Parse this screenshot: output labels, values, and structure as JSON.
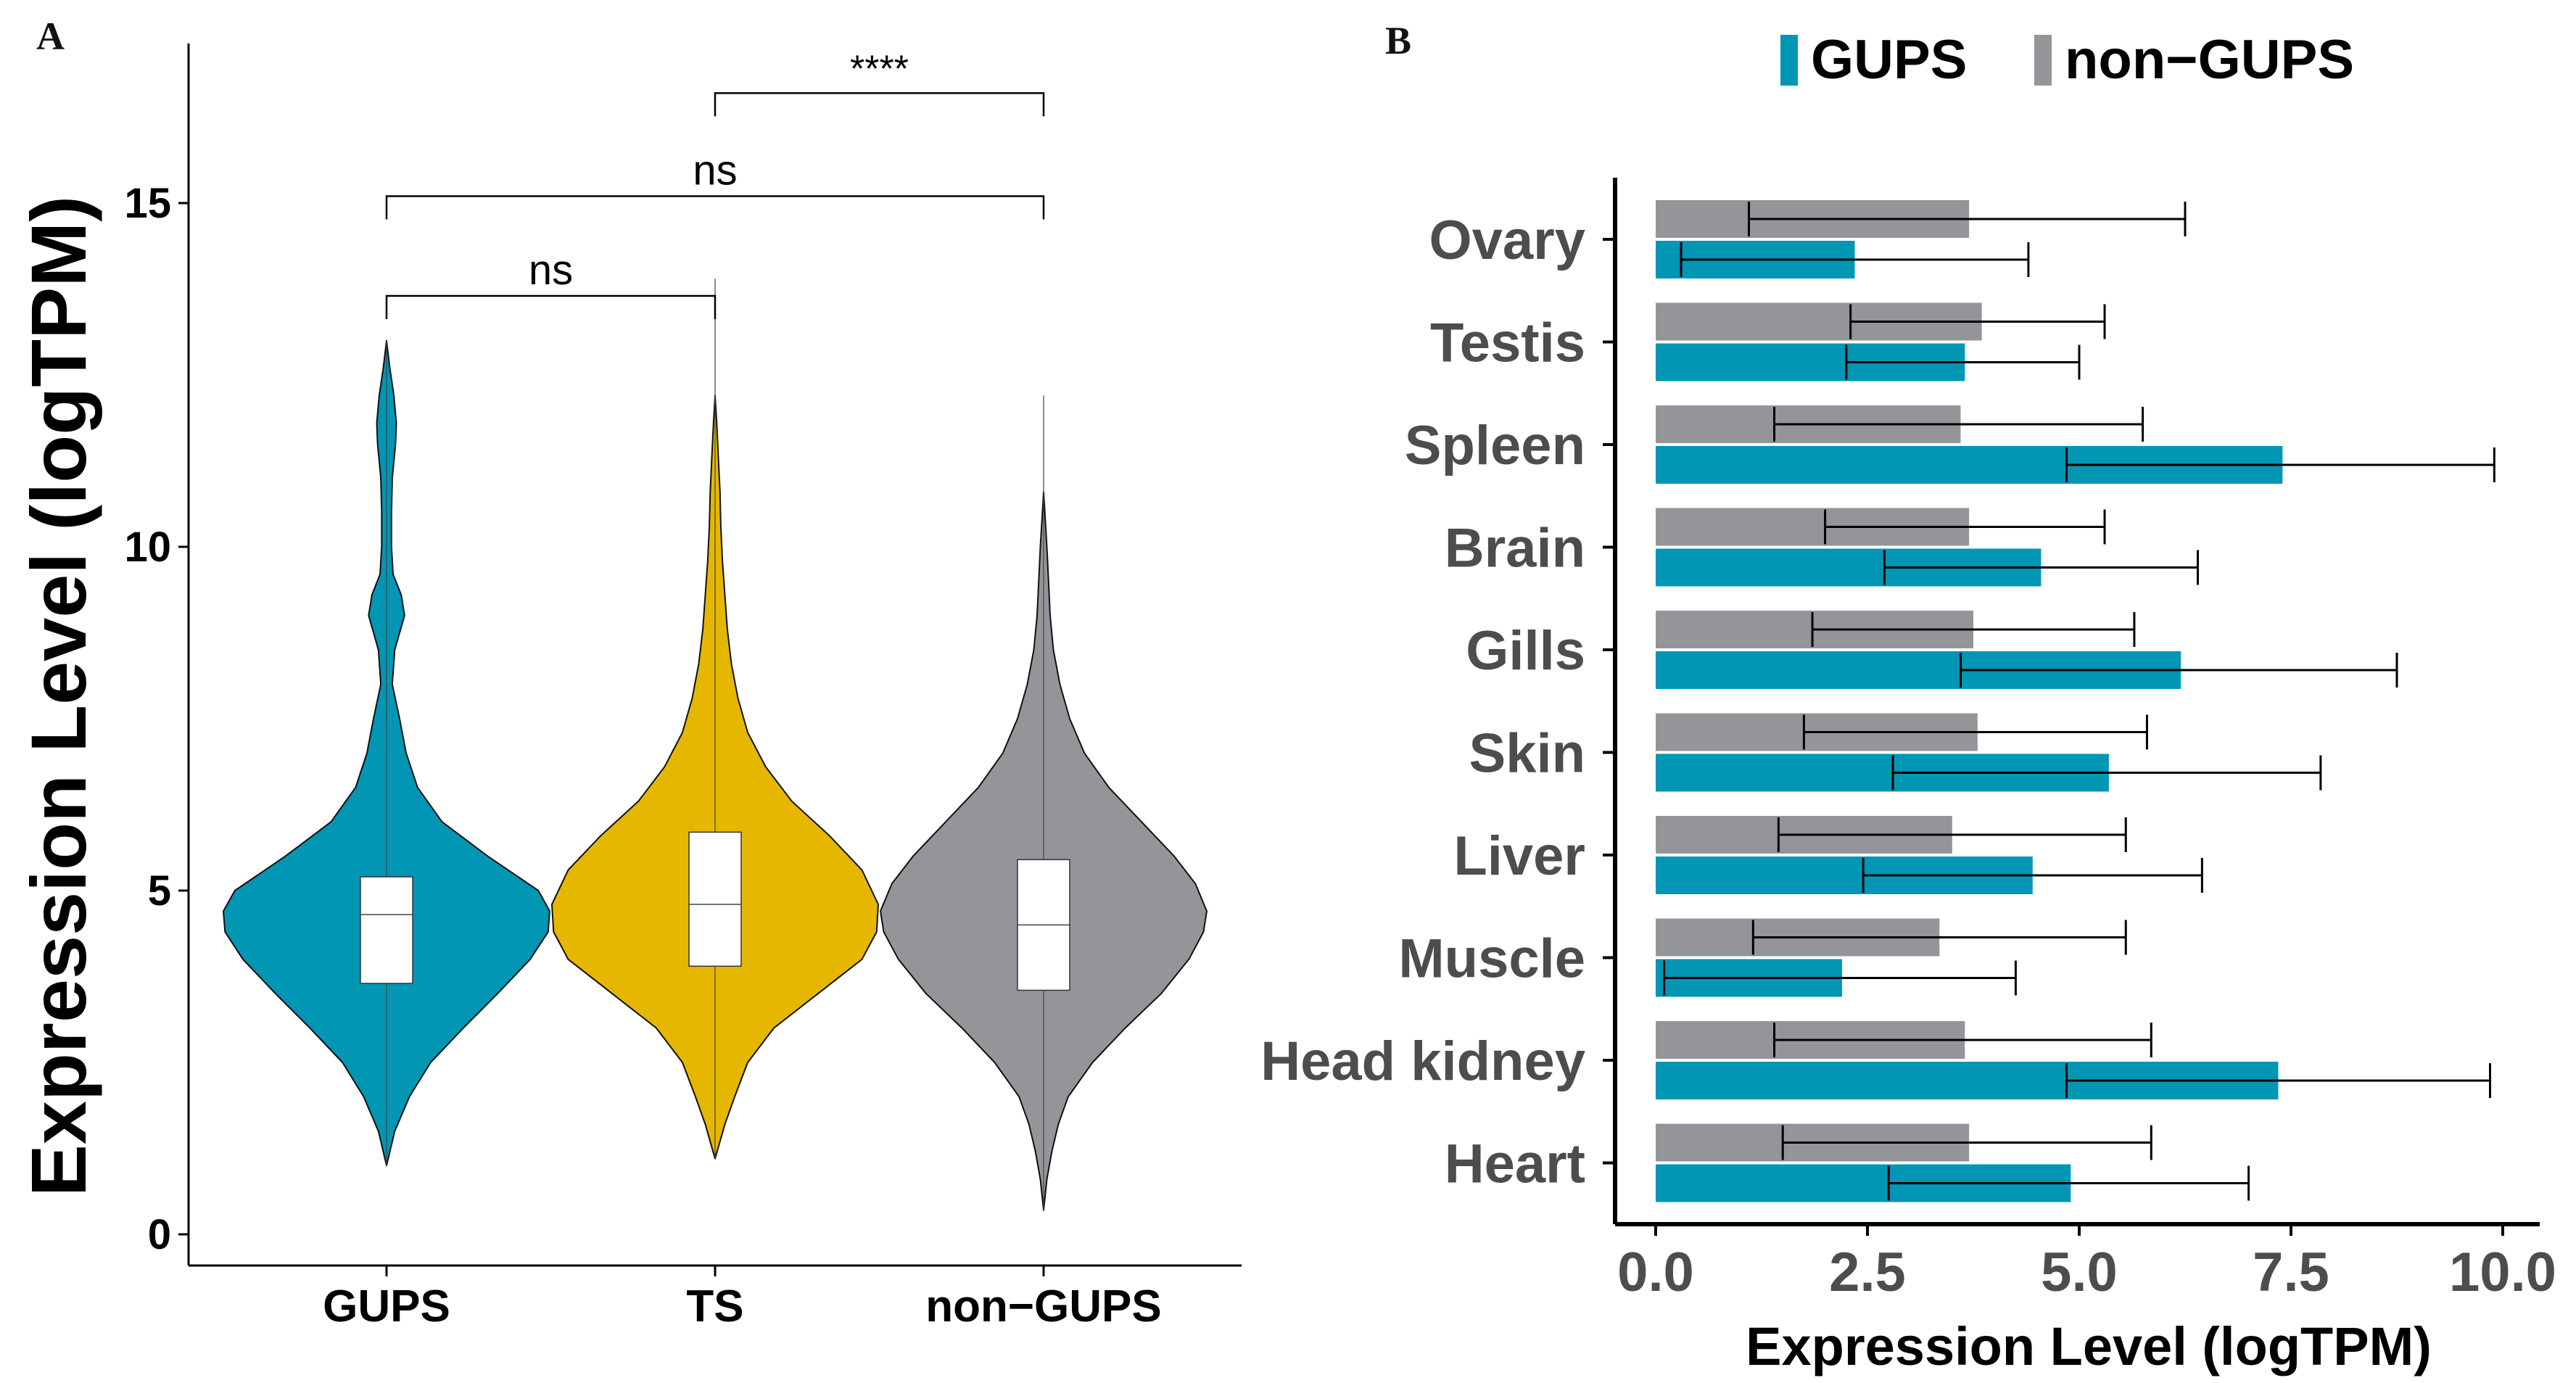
{
  "panel_a": {
    "label": "A",
    "chart_data": {
      "type": "violin",
      "ylabel": "Expression Level (logTPM)",
      "xlabel": "",
      "ylim": [
        -0.5,
        17.3
      ],
      "yticks": [
        0,
        5,
        10,
        15
      ],
      "ytick_labels": [
        "0",
        "5",
        "10",
        "15"
      ],
      "categories": [
        "GUPS",
        "TS",
        "non−GUPS"
      ],
      "colors": [
        "#0096b4",
        "#e6b700",
        "#939599"
      ],
      "boxes": [
        {
          "name": "GUPS",
          "q1": 3.65,
          "median": 4.65,
          "q3": 5.2,
          "min": 1.0,
          "max": 13.0
        },
        {
          "name": "TS",
          "q1": 3.9,
          "median": 4.8,
          "q3": 5.85,
          "min": 1.1,
          "max": 13.9
        },
        {
          "name": "non−GUPS",
          "q1": 3.55,
          "median": 4.5,
          "q3": 5.45,
          "min": 0.35,
          "max": 12.2
        }
      ],
      "comparisons": [
        {
          "groups": [
            "GUPS",
            "TS"
          ],
          "label": "ns",
          "y": 13.65
        },
        {
          "groups": [
            "GUPS",
            "non−GUPS"
          ],
          "label": "ns",
          "y": 15.1
        },
        {
          "groups": [
            "TS",
            "non−GUPS"
          ],
          "label": "****",
          "y": 16.6
        }
      ]
    }
  },
  "panel_b": {
    "label": "B",
    "chart_data": {
      "type": "bar",
      "orientation": "horizontal",
      "xlabel": "Expression Level (logTPM)",
      "ylabel": "",
      "xlim": [
        -0.5,
        10.3
      ],
      "xticks": [
        0,
        2.5,
        5,
        7.5,
        10
      ],
      "xtick_labels": [
        "0.0",
        "2.5",
        "5.0",
        "7.5",
        "10.0"
      ],
      "legend": {
        "position": "top",
        "entries": [
          {
            "name": "GUPS",
            "color": "#0096b4"
          },
          {
            "name": "non−GUPS",
            "color": "#939599"
          }
        ]
      },
      "categories": [
        "Ovary",
        "Testis",
        "Spleen",
        "Brain",
        "Gills",
        "Skin",
        "Liver",
        "Muscle",
        "Head kidney",
        "Heart"
      ],
      "series": [
        {
          "name": "GUPS",
          "color": "#0096b4",
          "values": [
            2.35,
            3.65,
            7.4,
            4.55,
            6.2,
            5.35,
            4.45,
            2.2,
            7.35,
            4.9
          ],
          "err_low": [
            0.3,
            2.25,
            4.85,
            2.7,
            3.6,
            2.8,
            2.45,
            0.1,
            4.85,
            2.75
          ],
          "err_high": [
            4.4,
            5.0,
            9.9,
            6.4,
            8.75,
            7.85,
            6.45,
            4.25,
            9.85,
            7.0
          ]
        },
        {
          "name": "non−GUPS",
          "color": "#939599",
          "values": [
            3.7,
            3.85,
            3.6,
            3.7,
            3.75,
            3.8,
            3.5,
            3.35,
            3.65,
            3.7
          ],
          "err_low": [
            1.1,
            2.3,
            1.4,
            2.0,
            1.85,
            1.75,
            1.45,
            1.15,
            1.4,
            1.5
          ],
          "err_high": [
            6.25,
            5.3,
            5.75,
            5.3,
            5.65,
            5.8,
            5.55,
            5.55,
            5.85,
            5.85
          ]
        }
      ]
    }
  }
}
